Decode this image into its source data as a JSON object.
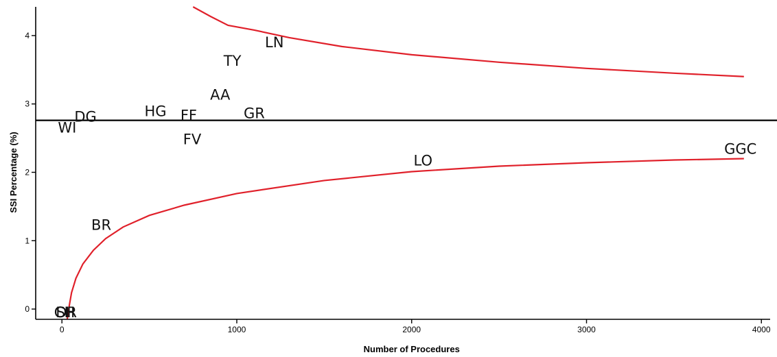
{
  "chart_data": {
    "type": "scatter",
    "xlabel": "Number of Procedures",
    "ylabel": "SSI Percentage (%)",
    "xlim": [
      -150,
      4050
    ],
    "ylim": [
      -0.15,
      4.42
    ],
    "x_ticks": [
      {
        "value": 0,
        "label": "0"
      },
      {
        "value": 1000,
        "label": "1000"
      },
      {
        "value": 2000,
        "label": "2000"
      },
      {
        "value": 3000,
        "label": "3000"
      },
      {
        "value": 4000,
        "label": "4000"
      }
    ],
    "y_ticks": [
      {
        "value": 0,
        "label": "0"
      },
      {
        "value": 1,
        "label": "1"
      },
      {
        "value": 2,
        "label": "2"
      },
      {
        "value": 3,
        "label": "3"
      },
      {
        "value": 4,
        "label": "4"
      }
    ],
    "reference_line": {
      "y": 2.76
    },
    "limit_curve_color": "#e0202a",
    "upper_limit_curve": [
      {
        "x": 750,
        "y": 4.42
      },
      {
        "x": 850,
        "y": 4.28
      },
      {
        "x": 950,
        "y": 4.15
      },
      {
        "x": 1100,
        "y": 4.08
      },
      {
        "x": 1300,
        "y": 3.97
      },
      {
        "x": 1600,
        "y": 3.84
      },
      {
        "x": 2000,
        "y": 3.72
      },
      {
        "x": 2500,
        "y": 3.61
      },
      {
        "x": 3000,
        "y": 3.52
      },
      {
        "x": 3500,
        "y": 3.45
      },
      {
        "x": 3900,
        "y": 3.4
      }
    ],
    "lower_limit_curve": [
      {
        "x": 30,
        "y": -0.15
      },
      {
        "x": 40,
        "y": 0.02
      },
      {
        "x": 55,
        "y": 0.24
      },
      {
        "x": 80,
        "y": 0.45
      },
      {
        "x": 120,
        "y": 0.66
      },
      {
        "x": 180,
        "y": 0.86
      },
      {
        "x": 250,
        "y": 1.03
      },
      {
        "x": 350,
        "y": 1.2
      },
      {
        "x": 500,
        "y": 1.37
      },
      {
        "x": 700,
        "y": 1.52
      },
      {
        "x": 1000,
        "y": 1.69
      },
      {
        "x": 1500,
        "y": 1.88
      },
      {
        "x": 2000,
        "y": 2.01
      },
      {
        "x": 2500,
        "y": 2.09
      },
      {
        "x": 3000,
        "y": 2.14
      },
      {
        "x": 3500,
        "y": 2.18
      },
      {
        "x": 3900,
        "y": 2.2
      }
    ],
    "points": [
      {
        "label": "LN",
        "x": 1215,
        "y": 3.9
      },
      {
        "label": "TY",
        "x": 975,
        "y": 3.63
      },
      {
        "label": "AA",
        "x": 905,
        "y": 3.13
      },
      {
        "label": "HG",
        "x": 535,
        "y": 2.89
      },
      {
        "label": "FF",
        "x": 725,
        "y": 2.83
      },
      {
        "label": "GR",
        "x": 1100,
        "y": 2.86
      },
      {
        "label": "DG",
        "x": 135,
        "y": 2.81
      },
      {
        "label": "WI",
        "x": 30,
        "y": 2.65
      },
      {
        "label": "FV",
        "x": 745,
        "y": 2.48
      },
      {
        "label": "LO",
        "x": 2065,
        "y": 2.17
      },
      {
        "label": "GGC",
        "x": 3880,
        "y": 2.34
      },
      {
        "label": "BR",
        "x": 225,
        "y": 1.23
      },
      {
        "label": "SI",
        "x": 5,
        "y": -0.05
      },
      {
        "label": "DR",
        "x": 25,
        "y": -0.05
      },
      {
        "label": "CH",
        "x": 15,
        "y": -0.05
      }
    ]
  }
}
